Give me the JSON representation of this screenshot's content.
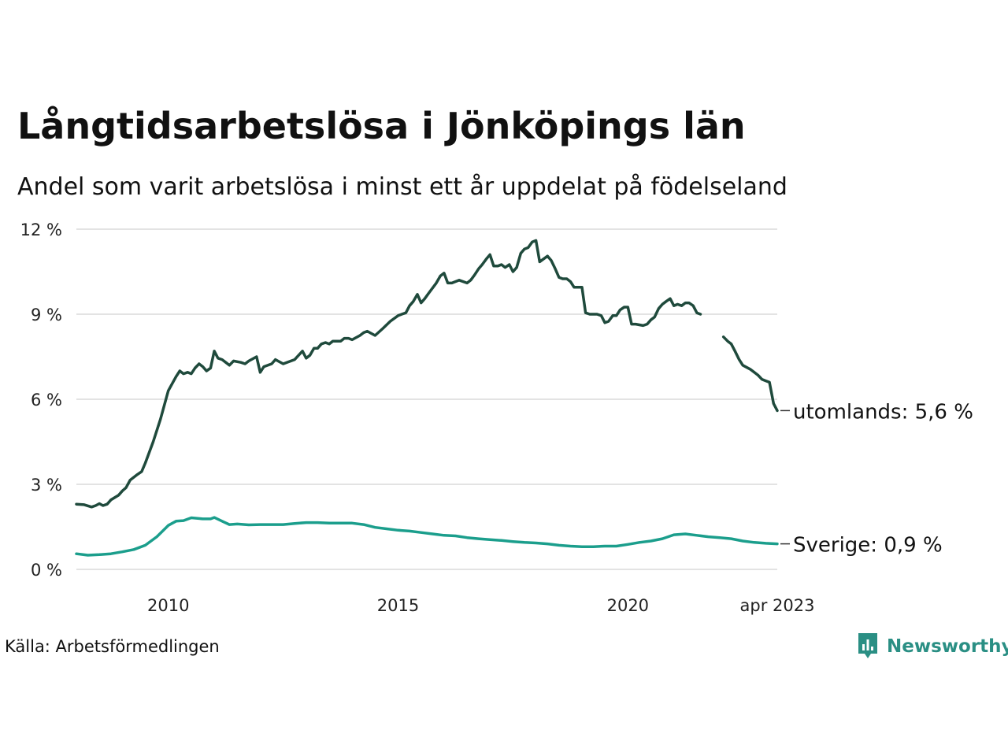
{
  "chart_data": {
    "type": "line",
    "title": "Långtidsarbetslösa i Jönköpings län",
    "subtitle": "Andel som varit arbetslösa i minst ett år uppdelat på födelseland",
    "source": "Källa: Arbetsförmedlingen",
    "y_ticks": [
      "0 %",
      "3 %",
      "6 %",
      "9 %",
      "12 %"
    ],
    "y_tick_values": [
      0,
      3,
      6,
      9,
      12
    ],
    "ylim": [
      0,
      12
    ],
    "x_ticks": [
      "2010",
      "2015",
      "2020",
      "apr 2023"
    ],
    "x_tick_values": [
      2010,
      2015,
      2020,
      2023.25
    ],
    "xlim": [
      2008.0,
      2023.25
    ],
    "grid": true,
    "legend": "direct labels at line ends",
    "series": [
      {
        "name": "utomlands",
        "end_label": "utomlands: 5,6 %",
        "color": "#1f4a3c",
        "points": [
          [
            2008.0,
            2.3
          ],
          [
            2008.17,
            2.28
          ],
          [
            2008.33,
            2.2
          ],
          [
            2008.42,
            2.25
          ],
          [
            2008.5,
            2.32
          ],
          [
            2008.58,
            2.25
          ],
          [
            2008.67,
            2.3
          ],
          [
            2008.75,
            2.45
          ],
          [
            2008.92,
            2.62
          ],
          [
            2009.0,
            2.77
          ],
          [
            2009.08,
            2.88
          ],
          [
            2009.17,
            3.15
          ],
          [
            2009.33,
            3.35
          ],
          [
            2009.42,
            3.45
          ],
          [
            2009.5,
            3.75
          ],
          [
            2009.67,
            4.5
          ],
          [
            2009.83,
            5.3
          ],
          [
            2010.0,
            6.3
          ],
          [
            2010.17,
            6.8
          ],
          [
            2010.25,
            7.0
          ],
          [
            2010.33,
            6.9
          ],
          [
            2010.42,
            6.95
          ],
          [
            2010.5,
            6.9
          ],
          [
            2010.58,
            7.1
          ],
          [
            2010.67,
            7.25
          ],
          [
            2010.75,
            7.15
          ],
          [
            2010.83,
            7.0
          ],
          [
            2010.92,
            7.1
          ],
          [
            2011.0,
            7.7
          ],
          [
            2011.08,
            7.45
          ],
          [
            2011.17,
            7.4
          ],
          [
            2011.25,
            7.3
          ],
          [
            2011.33,
            7.2
          ],
          [
            2011.42,
            7.35
          ],
          [
            2011.58,
            7.3
          ],
          [
            2011.67,
            7.25
          ],
          [
            2011.75,
            7.35
          ],
          [
            2011.92,
            7.5
          ],
          [
            2012.0,
            6.95
          ],
          [
            2012.08,
            7.15
          ],
          [
            2012.25,
            7.25
          ],
          [
            2012.33,
            7.4
          ],
          [
            2012.5,
            7.25
          ],
          [
            2012.58,
            7.3
          ],
          [
            2012.75,
            7.4
          ],
          [
            2012.92,
            7.7
          ],
          [
            2013.0,
            7.45
          ],
          [
            2013.08,
            7.55
          ],
          [
            2013.17,
            7.8
          ],
          [
            2013.25,
            7.8
          ],
          [
            2013.33,
            7.95
          ],
          [
            2013.42,
            8.0
          ],
          [
            2013.5,
            7.95
          ],
          [
            2013.58,
            8.05
          ],
          [
            2013.75,
            8.05
          ],
          [
            2013.83,
            8.15
          ],
          [
            2013.92,
            8.15
          ],
          [
            2014.0,
            8.1
          ],
          [
            2014.17,
            8.25
          ],
          [
            2014.25,
            8.35
          ],
          [
            2014.33,
            8.4
          ],
          [
            2014.5,
            8.25
          ],
          [
            2014.67,
            8.5
          ],
          [
            2014.83,
            8.75
          ],
          [
            2015.0,
            8.95
          ],
          [
            2015.08,
            9.0
          ],
          [
            2015.17,
            9.05
          ],
          [
            2015.25,
            9.3
          ],
          [
            2015.33,
            9.45
          ],
          [
            2015.42,
            9.7
          ],
          [
            2015.5,
            9.4
          ],
          [
            2015.58,
            9.55
          ],
          [
            2015.67,
            9.75
          ],
          [
            2015.83,
            10.1
          ],
          [
            2015.92,
            10.35
          ],
          [
            2016.0,
            10.45
          ],
          [
            2016.08,
            10.1
          ],
          [
            2016.17,
            10.1
          ],
          [
            2016.33,
            10.2
          ],
          [
            2016.5,
            10.1
          ],
          [
            2016.58,
            10.2
          ],
          [
            2016.67,
            10.4
          ],
          [
            2016.75,
            10.6
          ],
          [
            2016.83,
            10.75
          ],
          [
            2016.92,
            10.95
          ],
          [
            2017.0,
            11.1
          ],
          [
            2017.08,
            10.7
          ],
          [
            2017.17,
            10.7
          ],
          [
            2017.25,
            10.75
          ],
          [
            2017.33,
            10.65
          ],
          [
            2017.42,
            10.75
          ],
          [
            2017.5,
            10.5
          ],
          [
            2017.58,
            10.65
          ],
          [
            2017.67,
            11.15
          ],
          [
            2017.75,
            11.3
          ],
          [
            2017.83,
            11.35
          ],
          [
            2017.92,
            11.55
          ],
          [
            2018.0,
            11.6
          ],
          [
            2018.08,
            10.85
          ],
          [
            2018.25,
            11.05
          ],
          [
            2018.33,
            10.9
          ],
          [
            2018.42,
            10.6
          ],
          [
            2018.5,
            10.3
          ],
          [
            2018.58,
            10.25
          ],
          [
            2018.67,
            10.25
          ],
          [
            2018.75,
            10.15
          ],
          [
            2018.83,
            9.95
          ],
          [
            2018.92,
            9.95
          ],
          [
            2019.0,
            9.95
          ],
          [
            2019.08,
            9.05
          ],
          [
            2019.17,
            9.0
          ],
          [
            2019.25,
            9.0
          ],
          [
            2019.33,
            9.0
          ],
          [
            2019.42,
            8.95
          ],
          [
            2019.5,
            8.7
          ],
          [
            2019.58,
            8.75
          ],
          [
            2019.67,
            8.95
          ],
          [
            2019.75,
            8.95
          ],
          [
            2019.83,
            9.15
          ],
          [
            2019.92,
            9.25
          ],
          [
            2020.0,
            9.25
          ],
          [
            2020.08,
            8.65
          ],
          [
            2020.17,
            8.65
          ],
          [
            2020.33,
            8.6
          ],
          [
            2020.42,
            8.65
          ],
          [
            2020.5,
            8.8
          ],
          [
            2020.58,
            8.9
          ],
          [
            2020.67,
            9.2
          ],
          [
            2020.75,
            9.35
          ],
          [
            2020.83,
            9.45
          ],
          [
            2020.92,
            9.55
          ],
          [
            2021.0,
            9.3
          ],
          [
            2021.08,
            9.35
          ],
          [
            2021.17,
            9.3
          ],
          [
            2021.25,
            9.4
          ],
          [
            2021.33,
            9.4
          ],
          [
            2021.42,
            9.3
          ],
          [
            2021.5,
            9.05
          ],
          [
            2021.58,
            9.0
          ],
          null,
          [
            2022.08,
            8.2
          ],
          [
            2022.17,
            8.05
          ],
          [
            2022.25,
            7.95
          ],
          [
            2022.33,
            7.7
          ],
          [
            2022.42,
            7.4
          ],
          [
            2022.5,
            7.2
          ],
          [
            2022.67,
            7.05
          ],
          [
            2022.75,
            6.95
          ],
          [
            2022.83,
            6.85
          ],
          [
            2022.92,
            6.7
          ],
          [
            2023.0,
            6.65
          ],
          [
            2023.08,
            6.6
          ],
          [
            2023.17,
            5.85
          ],
          [
            2023.25,
            5.6
          ]
        ]
      },
      {
        "name": "Sverige",
        "end_label": "Sverige: 0,9 %",
        "color": "#1b9e8c",
        "points": [
          [
            2008.0,
            0.55
          ],
          [
            2008.25,
            0.5
          ],
          [
            2008.5,
            0.52
          ],
          [
            2008.75,
            0.55
          ],
          [
            2009.0,
            0.62
          ],
          [
            2009.25,
            0.7
          ],
          [
            2009.5,
            0.85
          ],
          [
            2009.75,
            1.15
          ],
          [
            2010.0,
            1.55
          ],
          [
            2010.17,
            1.7
          ],
          [
            2010.33,
            1.72
          ],
          [
            2010.5,
            1.82
          ],
          [
            2010.75,
            1.78
          ],
          [
            2010.92,
            1.78
          ],
          [
            2011.0,
            1.83
          ],
          [
            2011.17,
            1.7
          ],
          [
            2011.33,
            1.58
          ],
          [
            2011.5,
            1.6
          ],
          [
            2011.75,
            1.57
          ],
          [
            2012.0,
            1.58
          ],
          [
            2012.25,
            1.58
          ],
          [
            2012.5,
            1.58
          ],
          [
            2012.75,
            1.62
          ],
          [
            2013.0,
            1.65
          ],
          [
            2013.25,
            1.65
          ],
          [
            2013.5,
            1.63
          ],
          [
            2013.75,
            1.63
          ],
          [
            2014.0,
            1.63
          ],
          [
            2014.25,
            1.58
          ],
          [
            2014.5,
            1.48
          ],
          [
            2014.75,
            1.43
          ],
          [
            2015.0,
            1.38
          ],
          [
            2015.25,
            1.35
          ],
          [
            2015.5,
            1.3
          ],
          [
            2015.75,
            1.25
          ],
          [
            2016.0,
            1.2
          ],
          [
            2016.25,
            1.18
          ],
          [
            2016.5,
            1.12
          ],
          [
            2016.75,
            1.08
          ],
          [
            2017.0,
            1.05
          ],
          [
            2017.25,
            1.02
          ],
          [
            2017.5,
            0.98
          ],
          [
            2017.75,
            0.95
          ],
          [
            2018.0,
            0.93
          ],
          [
            2018.25,
            0.9
          ],
          [
            2018.5,
            0.85
          ],
          [
            2018.75,
            0.82
          ],
          [
            2019.0,
            0.8
          ],
          [
            2019.25,
            0.8
          ],
          [
            2019.5,
            0.82
          ],
          [
            2019.75,
            0.82
          ],
          [
            2020.0,
            0.88
          ],
          [
            2020.25,
            0.95
          ],
          [
            2020.5,
            1.0
          ],
          [
            2020.75,
            1.08
          ],
          [
            2021.0,
            1.22
          ],
          [
            2021.25,
            1.25
          ],
          [
            2021.5,
            1.2
          ],
          [
            2021.75,
            1.15
          ],
          [
            2022.0,
            1.12
          ],
          [
            2022.25,
            1.08
          ],
          [
            2022.5,
            1.0
          ],
          [
            2022.75,
            0.95
          ],
          [
            2023.0,
            0.92
          ],
          [
            2023.25,
            0.9
          ]
        ]
      }
    ]
  },
  "brand": {
    "name": "Newsworthy",
    "icon": "bar-chart-speech-bubble-icon"
  }
}
